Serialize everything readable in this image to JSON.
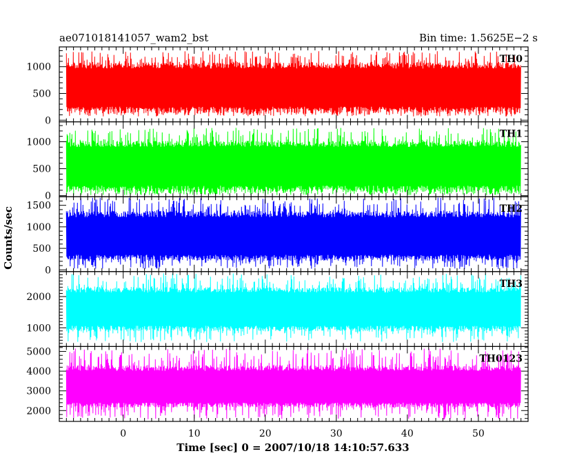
{
  "header": {
    "left_title": "ae071018141057_wam2_bst",
    "right_title": "Bin time: 1.5625E−2 s"
  },
  "chart_data": {
    "type": "line",
    "xlabel": "Time [sec] 0 = 2007/10/18 14:10:57.633",
    "ylabel": "Counts/sec",
    "xlim": [
      -9.0,
      57.0
    ],
    "x_ticks": [
      "0",
      "10",
      "20",
      "30",
      "40",
      "50"
    ],
    "x_range_data": [
      -8.0,
      56.0
    ],
    "bin_time": 0.015625,
    "panels": [
      {
        "name": "TH0",
        "color": "#ff0000",
        "ylim": [
          -30,
          1370
        ],
        "y_ticks": [
          "0",
          "500",
          "1000"
        ],
        "baseline": 620,
        "band_low": 130,
        "band_high": 1080,
        "peak_min": 70,
        "peak_max": 1290
      },
      {
        "name": "TH1",
        "color": "#00ff00",
        "ylim": [
          -20,
          1370
        ],
        "y_ticks": [
          "0",
          "500",
          "1000"
        ],
        "baseline": 560,
        "band_low": 60,
        "band_high": 1020,
        "peak_min": 10,
        "peak_max": 1260
      },
      {
        "name": "TH2",
        "color": "#0000ff",
        "ylim": [
          -40,
          1700
        ],
        "y_ticks": [
          "0",
          "500",
          "1000",
          "1500"
        ],
        "baseline": 780,
        "band_low": 210,
        "band_high": 1370,
        "peak_min": 20,
        "peak_max": 1680
      },
      {
        "name": "TH3",
        "color": "#00ffff",
        "ylim": [
          400,
          2800
        ],
        "y_ticks": [
          "1000",
          "2000"
        ],
        "baseline": 1620,
        "band_low": 880,
        "band_high": 2300,
        "peak_min": 540,
        "peak_max": 2750
      },
      {
        "name": "TH0123",
        "color": "#ff00ff",
        "ylim": [
          1450,
          5250
        ],
        "y_ticks": [
          "2000",
          "3000",
          "4000",
          "5000"
        ],
        "baseline": 3150,
        "band_low": 2150,
        "band_high": 4300,
        "peak_min": 1550,
        "peak_max": 5150
      }
    ]
  }
}
